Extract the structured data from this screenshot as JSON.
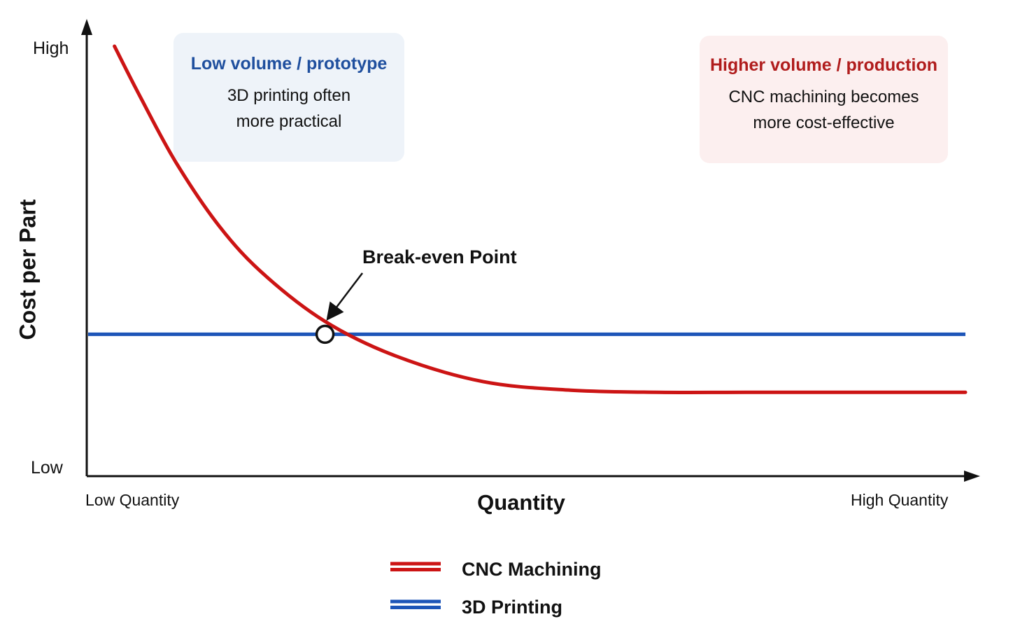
{
  "colors": {
    "cnc": "#cc1414",
    "printing": "#1d55b8",
    "axis": "#111111"
  },
  "boxes": {
    "left": {
      "title": "Low volume / prototype",
      "body": "3D printing often\nmore practical"
    },
    "right": {
      "title": "Higher volume / production",
      "body": "CNC machining becomes\nmore cost-effective"
    }
  },
  "chart_data": {
    "type": "line",
    "xlabel": "Quantity",
    "ylabel": "Cost per Part",
    "xticks": [
      "Low Quantity",
      "High Quantity"
    ],
    "yticks": [
      "High",
      "Low"
    ],
    "xlim": [
      0,
      1
    ],
    "ylim": [
      0,
      1
    ],
    "grid": false,
    "legend_position": "bottom-center",
    "series": [
      {
        "name": "CNC Machining",
        "color": "#cc1414",
        "x": [
          0.03,
          0.06,
          0.1,
          0.15,
          0.2,
          0.27,
          0.35,
          0.45,
          0.55,
          0.65,
          0.75,
          0.85,
          0.95,
          1.0
        ],
        "y": [
          1.0,
          0.88,
          0.73,
          0.58,
          0.47,
          0.36,
          0.28,
          0.22,
          0.2,
          0.195,
          0.195,
          0.195,
          0.195,
          0.195
        ]
      },
      {
        "name": "3D Printing",
        "color": "#1d55b8",
        "x": [
          0.0,
          1.0
        ],
        "y": [
          0.33,
          0.33
        ]
      }
    ],
    "annotations": [
      {
        "text": "Break-even Point",
        "x": 0.27,
        "y": 0.33
      }
    ]
  }
}
